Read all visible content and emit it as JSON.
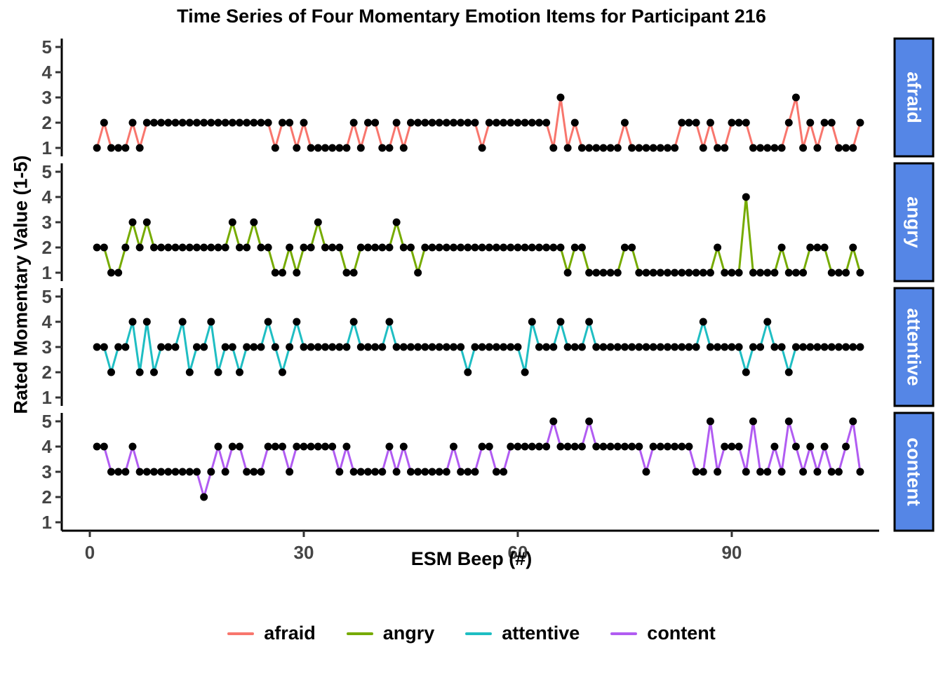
{
  "title": "Time Series of Four Momentary Emotion Items for Participant 216",
  "y_axis_label": "Rated Momentary Value (1-5)",
  "x_axis_label": "ESM Beep (#)",
  "y_ticks": [
    5,
    4,
    3,
    2,
    1
  ],
  "x_ticks": [
    0,
    30,
    60,
    90
  ],
  "strip_fill": "#5586E6",
  "strip_text_color": "#ffffff",
  "tick_label_color": "#454545",
  "axis_line_color": "#000000",
  "point_color": "#000000",
  "chart_data": {
    "type": "line",
    "title": "Time Series of Four Momentary Emotion Items for Participant 216",
    "xlabel": "ESM Beep (#)",
    "ylabel": "Rated Momentary Value (1-5)",
    "xlim": [
      0,
      112
    ],
    "ylim": [
      1,
      5
    ],
    "x_ticks": [
      0,
      30,
      60,
      90
    ],
    "y_ticks": [
      1,
      2,
      3,
      4,
      5
    ],
    "x_start": 1,
    "n_points": 108,
    "facets": [
      "afraid",
      "angry",
      "attentive",
      "content"
    ],
    "legend_position": "bottom",
    "grid": false,
    "marker": "point",
    "series": [
      {
        "name": "afraid",
        "color": "#F8766D",
        "values": [
          1,
          2,
          1,
          1,
          1,
          2,
          1,
          2,
          2,
          2,
          2,
          2,
          2,
          2,
          2,
          2,
          2,
          2,
          2,
          2,
          2,
          2,
          2,
          2,
          2,
          1,
          2,
          2,
          1,
          2,
          1,
          1,
          1,
          1,
          1,
          1,
          2,
          1,
          2,
          2,
          1,
          1,
          2,
          1,
          2,
          2,
          2,
          2,
          2,
          2,
          2,
          2,
          2,
          2,
          1,
          2,
          2,
          2,
          2,
          2,
          2,
          2,
          2,
          2,
          1,
          3,
          1,
          2,
          1,
          1,
          1,
          1,
          1,
          1,
          2,
          1,
          1,
          1,
          1,
          1,
          1,
          1,
          2,
          2,
          2,
          1,
          2,
          1,
          1,
          2,
          2,
          2,
          1,
          1,
          1,
          1,
          1,
          2,
          3,
          1,
          2,
          1,
          2,
          2,
          1,
          1,
          1,
          2
        ]
      },
      {
        "name": "angry",
        "color": "#76AB01",
        "values": [
          2,
          2,
          1,
          1,
          2,
          3,
          2,
          3,
          2,
          2,
          2,
          2,
          2,
          2,
          2,
          2,
          2,
          2,
          2,
          3,
          2,
          2,
          3,
          2,
          2,
          1,
          1,
          2,
          1,
          2,
          2,
          3,
          2,
          2,
          2,
          1,
          1,
          2,
          2,
          2,
          2,
          2,
          3,
          2,
          2,
          1,
          2,
          2,
          2,
          2,
          2,
          2,
          2,
          2,
          2,
          2,
          2,
          2,
          2,
          2,
          2,
          2,
          2,
          2,
          2,
          2,
          1,
          2,
          2,
          1,
          1,
          1,
          1,
          1,
          2,
          2,
          1,
          1,
          1,
          1,
          1,
          1,
          1,
          1,
          1,
          1,
          1,
          2,
          1,
          1,
          1,
          4,
          1,
          1,
          1,
          1,
          2,
          1,
          1,
          1,
          2,
          2,
          2,
          1,
          1,
          1,
          2,
          1
        ]
      },
      {
        "name": "attentive",
        "color": "#1FBEC3",
        "values": [
          3,
          3,
          2,
          3,
          3,
          4,
          2,
          4,
          2,
          3,
          3,
          3,
          4,
          2,
          3,
          3,
          4,
          2,
          3,
          3,
          2,
          3,
          3,
          3,
          4,
          3,
          2,
          3,
          4,
          3,
          3,
          3,
          3,
          3,
          3,
          3,
          4,
          3,
          3,
          3,
          3,
          4,
          3,
          3,
          3,
          3,
          3,
          3,
          3,
          3,
          3,
          3,
          2,
          3,
          3,
          3,
          3,
          3,
          3,
          3,
          2,
          4,
          3,
          3,
          3,
          4,
          3,
          3,
          3,
          4,
          3,
          3,
          3,
          3,
          3,
          3,
          3,
          3,
          3,
          3,
          3,
          3,
          3,
          3,
          3,
          4,
          3,
          3,
          3,
          3,
          3,
          2,
          3,
          3,
          4,
          3,
          3,
          2,
          3,
          3,
          3,
          3,
          3,
          3,
          3,
          3,
          3,
          3
        ]
      },
      {
        "name": "content",
        "color": "#B15CF2",
        "values": [
          4,
          4,
          3,
          3,
          3,
          4,
          3,
          3,
          3,
          3,
          3,
          3,
          3,
          3,
          3,
          2,
          3,
          4,
          3,
          4,
          4,
          3,
          3,
          3,
          4,
          4,
          4,
          3,
          4,
          4,
          4,
          4,
          4,
          4,
          3,
          4,
          3,
          3,
          3,
          3,
          3,
          4,
          3,
          4,
          3,
          3,
          3,
          3,
          3,
          3,
          4,
          3,
          3,
          3,
          4,
          4,
          3,
          3,
          4,
          4,
          4,
          4,
          4,
          4,
          5,
          4,
          4,
          4,
          4,
          5,
          4,
          4,
          4,
          4,
          4,
          4,
          4,
          3,
          4,
          4,
          4,
          4,
          4,
          4,
          3,
          3,
          5,
          3,
          4,
          4,
          4,
          3,
          5,
          3,
          3,
          4,
          3,
          5,
          4,
          3,
          4,
          3,
          4,
          3,
          3,
          4,
          5,
          3
        ]
      }
    ]
  }
}
